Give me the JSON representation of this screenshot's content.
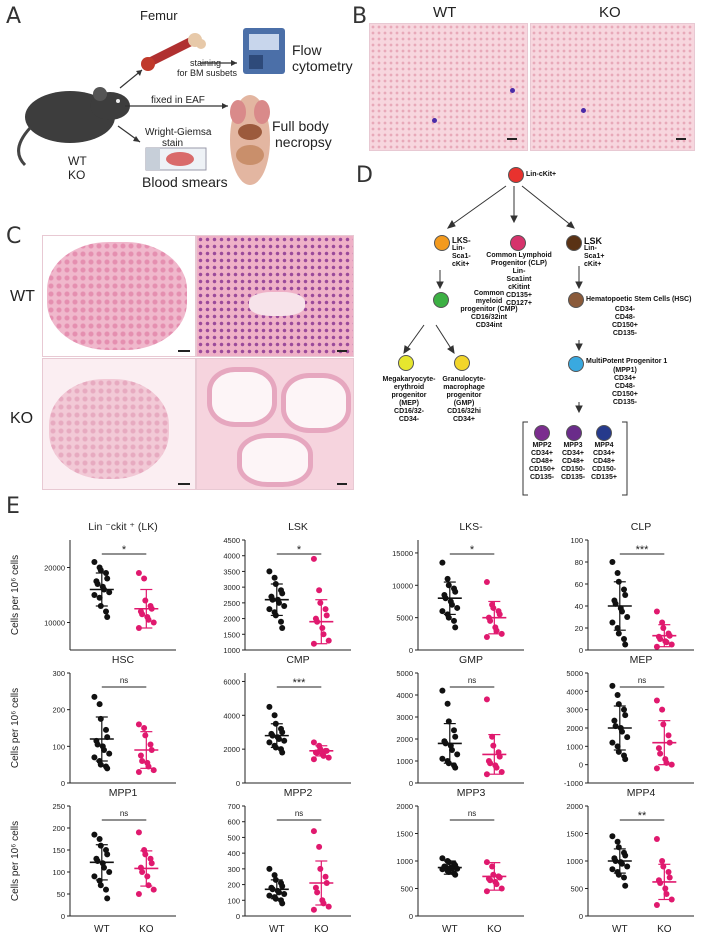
{
  "panels": {
    "A": {
      "letter": "A",
      "femur": "Femur",
      "staining": "staining",
      "staining2": "for BM susbets",
      "flow1": "Flow",
      "flow2": "cytometry",
      "fixed": "fixed in EAF",
      "wright1": "Wright-Giemsa",
      "wright2": "stain",
      "necropsy1": "Full body",
      "necropsy2": "necropsy",
      "genotype1": "WT",
      "genotype2": "KO",
      "smears": "Blood smears"
    },
    "B": {
      "letter": "B",
      "wt": "WT",
      "ko": "KO"
    },
    "C": {
      "letter": "C",
      "wt": "WT",
      "ko": "KO"
    },
    "D": {
      "letter": "D",
      "root": "Lin-cKit+",
      "lks_minus": [
        "LKS-",
        "Lin-",
        "Sca1-",
        "cKit+"
      ],
      "clp": [
        "Common  Lymphoid",
        "Progenitor (CLP)",
        "Lin-",
        "Sca1int",
        "cKitint",
        "CD135+",
        "CD127+"
      ],
      "lsk": [
        "LSK",
        "Lin-",
        "Sca1+",
        "cKit+"
      ],
      "cmp": [
        "Common",
        "myeloid",
        "progenitor (CMP)",
        "CD16/32int",
        "CD34int"
      ],
      "hsc": [
        "Hematopoetic Stem Cells (HSC)",
        "CD34-",
        "CD48-",
        "CD150+",
        "CD135-"
      ],
      "mep": [
        "Megakaryocyte-",
        "erythroid",
        "progenitor",
        "(MEP)",
        "CD16/32-",
        "CD34-"
      ],
      "gmp": [
        "Granulocyte-",
        "macrophage",
        "progenitor",
        "(GMP)",
        "CD16/32hi",
        "CD34+"
      ],
      "mpp1": [
        "MultiPotent Progenitor 1",
        "(MPP1)",
        "CD34+",
        "CD48-",
        "CD150+",
        "CD135-"
      ],
      "mpp2": [
        "MPP2",
        "CD34+",
        "CD48+",
        "CD150+",
        "CD135-"
      ],
      "mpp3": [
        "MPP3",
        "CD34+",
        "CD48+",
        "CD150-",
        "CD135-"
      ],
      "mpp4": [
        "MPP4",
        "CD34+",
        "CD48+",
        "CD150-",
        "CD135+"
      ],
      "colors": {
        "root": "#e8322e",
        "lks_minus": "#f39a1e",
        "clp": "#d6336c",
        "lsk": "#5a3214",
        "cmp": "#3cb043",
        "hsc": "#8a5a3a",
        "mep": "#e6e62e",
        "gmp": "#f2d52a",
        "mpp1": "#39a9e0",
        "mpp2": "#7b2d8e",
        "mpp3": "#6a2c8a",
        "mpp4": "#263a8c"
      }
    },
    "E": {
      "letter": "E",
      "ylabel": "Cells per 10⁶ cells",
      "groups": [
        "WT",
        "KO"
      ],
      "colors": {
        "WT": "#111111",
        "KO": "#e0196e"
      }
    }
  },
  "chart_data": [
    {
      "type": "scatter",
      "title": "Lin ⁻ckit ⁺ (LK)",
      "sig": "*",
      "yticks": [
        "10000",
        "20000"
      ],
      "ylim": [
        5000,
        25000
      ],
      "wt": [
        21000,
        20000,
        19500,
        19000,
        18000,
        17500,
        17000,
        16500,
        16000,
        15500,
        15000,
        14500,
        13000,
        12000,
        11000
      ],
      "ko": [
        19000,
        18000,
        14000,
        13000,
        12500,
        12000,
        11500,
        11000,
        10500,
        10000,
        9000
      ],
      "wt_mean": 16000,
      "wt_sd": 3000,
      "ko_mean": 12500,
      "ko_sd": 3500
    },
    {
      "type": "scatter",
      "title": "LSK",
      "sig": "*",
      "yticks": [
        "1000",
        "1500",
        "2000",
        "2500",
        "3000",
        "3500",
        "4000",
        "4500"
      ],
      "ylim": [
        1000,
        4500
      ],
      "wt": [
        3500,
        3300,
        3100,
        2900,
        2800,
        2700,
        2600,
        2600,
        2500,
        2400,
        2300,
        2200,
        2100,
        1900,
        1700
      ],
      "ko": [
        3900,
        2900,
        2500,
        2300,
        2100,
        2000,
        1900,
        1700,
        1500,
        1300,
        1200
      ],
      "wt_mean": 2600,
      "wt_sd": 500,
      "ko_mean": 1900,
      "ko_sd": 700
    },
    {
      "type": "scatter",
      "title": "LKS-",
      "sig": "*",
      "yticks": [
        "0",
        "5000",
        "10000",
        "15000"
      ],
      "ylim": [
        0,
        17000
      ],
      "wt": [
        13500,
        11000,
        10000,
        9500,
        9000,
        8500,
        8000,
        7500,
        7000,
        6500,
        6000,
        5500,
        5000,
        4500,
        3500
      ],
      "ko": [
        10500,
        7000,
        6500,
        6000,
        5500,
        5000,
        4500,
        3500,
        3000,
        2500,
        2000
      ],
      "wt_mean": 8000,
      "wt_sd": 2500,
      "ko_mean": 5000,
      "ko_sd": 2500
    },
    {
      "type": "scatter",
      "title": "CLP",
      "sig": "***",
      "yticks": [
        "0",
        "20",
        "40",
        "60",
        "80",
        "100"
      ],
      "ylim": [
        0,
        100
      ],
      "wt": [
        80,
        70,
        62,
        55,
        50,
        45,
        42,
        38,
        35,
        30,
        25,
        20,
        15,
        10,
        5
      ],
      "ko": [
        35,
        25,
        20,
        15,
        13,
        12,
        10,
        8,
        7,
        5,
        3
      ],
      "wt_mean": 40,
      "wt_sd": 22,
      "ko_mean": 13,
      "ko_sd": 10
    },
    {
      "type": "scatter",
      "title": "HSC",
      "sig": "ns",
      "yticks": [
        "0",
        "100",
        "200",
        "300"
      ],
      "ylim": [
        0,
        300
      ],
      "wt": [
        235,
        215,
        175,
        145,
        125,
        115,
        105,
        100,
        90,
        80,
        70,
        60,
        50,
        45,
        40
      ],
      "ko": [
        160,
        150,
        130,
        105,
        90,
        75,
        60,
        55,
        45,
        35,
        30
      ],
      "wt_mean": 120,
      "wt_sd": 60,
      "ko_mean": 90,
      "ko_sd": 50
    },
    {
      "type": "scatter",
      "title": "CMP",
      "sig": "***",
      "yticks": [
        "0",
        "2000",
        "4000",
        "6000"
      ],
      "ylim": [
        0,
        6500
      ],
      "wt": [
        4500,
        4000,
        3500,
        3200,
        3000,
        2900,
        2800,
        2700,
        2600,
        2500,
        2400,
        2200,
        2100,
        2000,
        1800
      ],
      "ko": [
        2400,
        2200,
        2000,
        1900,
        1900,
        1800,
        1800,
        1700,
        1600,
        1500,
        1400
      ],
      "wt_mean": 2800,
      "wt_sd": 700,
      "ko_mean": 1900,
      "ko_sd": 300
    },
    {
      "type": "scatter",
      "title": "GMP",
      "sig": "ns",
      "yticks": [
        "0",
        "1000",
        "2000",
        "3000",
        "4000",
        "5000"
      ],
      "ylim": [
        0,
        5000
      ],
      "wt": [
        4200,
        3600,
        2800,
        2400,
        2100,
        1900,
        1800,
        1700,
        1500,
        1300,
        1100,
        1000,
        900,
        800,
        700
      ],
      "ko": [
        3800,
        2100,
        1700,
        1400,
        1200,
        1000,
        900,
        800,
        700,
        500,
        400
      ],
      "wt_mean": 1800,
      "wt_sd": 900,
      "ko_mean": 1300,
      "ko_sd": 900
    },
    {
      "type": "scatter",
      "title": "MEP",
      "sig": "ns",
      "yticks": [
        "-1000",
        "0",
        "1000",
        "2000",
        "3000",
        "4000",
        "5000"
      ],
      "ylim": [
        -1000,
        5000
      ],
      "wt": [
        4300,
        3800,
        3300,
        3000,
        2700,
        2400,
        2100,
        2000,
        1800,
        1500,
        1200,
        1000,
        700,
        500,
        300
      ],
      "ko": [
        3500,
        3000,
        2200,
        1600,
        1200,
        900,
        600,
        300,
        100,
        0,
        -200
      ],
      "wt_mean": 2000,
      "wt_sd": 1200,
      "ko_mean": 1200,
      "ko_sd": 1200
    },
    {
      "type": "scatter",
      "title": "MPP1",
      "sig": "ns",
      "yticks": [
        "0",
        "50",
        "100",
        "150",
        "200",
        "250"
      ],
      "ylim": [
        0,
        250
      ],
      "wt": [
        185,
        175,
        160,
        150,
        140,
        130,
        125,
        120,
        110,
        100,
        90,
        80,
        70,
        60,
        40
      ],
      "ko": [
        190,
        150,
        140,
        130,
        120,
        110,
        100,
        90,
        70,
        60,
        50
      ],
      "wt_mean": 122,
      "wt_sd": 40,
      "ko_mean": 108,
      "ko_sd": 40
    },
    {
      "type": "scatter",
      "title": "MPP2",
      "sig": "ns",
      "yticks": [
        "0",
        "100",
        "200",
        "300",
        "400",
        "500",
        "600",
        "700"
      ],
      "ylim": [
        0,
        700
      ],
      "wt": [
        300,
        260,
        230,
        210,
        190,
        180,
        170,
        160,
        150,
        140,
        130,
        120,
        110,
        100,
        80
      ],
      "ko": [
        540,
        440,
        300,
        250,
        210,
        180,
        150,
        100,
        80,
        60,
        40
      ],
      "wt_mean": 170,
      "wt_sd": 60,
      "ko_mean": 210,
      "ko_sd": 140
    },
    {
      "type": "scatter",
      "title": "MPP3",
      "sig": "ns",
      "yticks": [
        "0",
        "500",
        "1000",
        "1500",
        "2000"
      ],
      "ylim": [
        0,
        2000
      ],
      "wt": [
        1050,
        1000,
        980,
        950,
        920,
        900,
        890,
        880,
        870,
        860,
        850,
        820,
        800,
        780,
        750
      ],
      "ko": [
        980,
        900,
        750,
        720,
        700,
        680,
        650,
        620,
        580,
        500,
        450
      ],
      "wt_mean": 880,
      "wt_sd": 120,
      "ko_mean": 720,
      "ko_sd": 250
    },
    {
      "type": "scatter",
      "title": "MPP4",
      "sig": "**",
      "yticks": [
        "0",
        "500",
        "1000",
        "1500",
        "2000"
      ],
      "ylim": [
        0,
        2000
      ],
      "wt": [
        1450,
        1350,
        1250,
        1150,
        1100,
        1050,
        1000,
        980,
        950,
        900,
        850,
        800,
        750,
        700,
        550
      ],
      "ko": [
        1400,
        1000,
        900,
        800,
        700,
        650,
        600,
        500,
        400,
        300,
        200
      ],
      "wt_mean": 1000,
      "wt_sd": 220,
      "ko_mean": 620,
      "ko_sd": 320
    }
  ]
}
